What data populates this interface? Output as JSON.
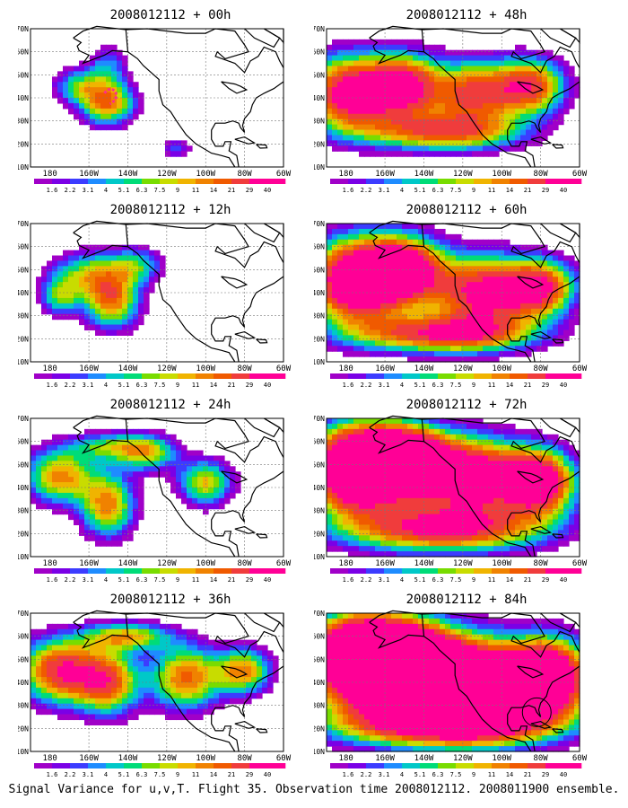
{
  "panels": [
    {
      "title": "2008012112 + 00h",
      "intensity": 0.12
    },
    {
      "title": "2008012112 + 12h",
      "intensity": 0.18
    },
    {
      "title": "2008012112 + 24h",
      "intensity": 0.26
    },
    {
      "title": "2008012112 + 36h",
      "intensity": 0.36
    },
    {
      "title": "2008012112 + 48h",
      "intensity": 0.46
    },
    {
      "title": "2008012112 + 60h",
      "intensity": 0.56
    },
    {
      "title": "2008012112 + 72h",
      "intensity": 0.66
    },
    {
      "title": "2008012112 + 84h",
      "intensity": 0.78
    }
  ],
  "axes": {
    "lat_labels": [
      "10N",
      "20N",
      "30N",
      "40N",
      "50N",
      "60N",
      "70N"
    ],
    "lon_labels": [
      "180",
      "160W",
      "140W",
      "120W",
      "100W",
      "80W",
      "60W"
    ]
  },
  "colorbar": {
    "labels": [
      "1.6",
      "2.2",
      "3.1",
      "4",
      "5.1",
      "6.3",
      "7.5",
      "9",
      "11",
      "14",
      "21",
      "29",
      "40"
    ],
    "colors": [
      "#a000c8",
      "#7a00e6",
      "#3c3cff",
      "#1e8cff",
      "#00c8c8",
      "#00dc78",
      "#78dc00",
      "#c8dc00",
      "#f0b400",
      "#f08200",
      "#f05a00",
      "#f03c3c",
      "#ff0096"
    ]
  },
  "caption": "Signal Variance for u,v,T. Flight 35. Observation time 2008012112. 2008011900 ensemble."
}
